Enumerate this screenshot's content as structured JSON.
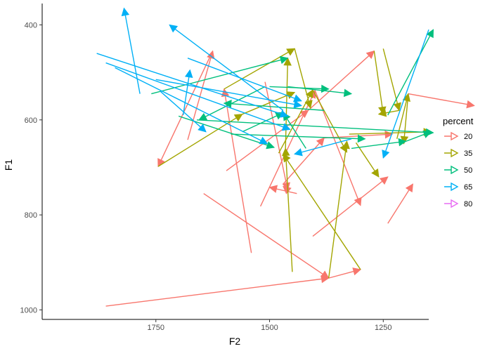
{
  "chart_data": {
    "type": "line",
    "subtype": "arrow-segments",
    "xlabel": "F2",
    "ylabel": "F1",
    "x_reversed": true,
    "y_reversed": true,
    "xlim": [
      2000,
      1150
    ],
    "ylim": [
      355,
      1020
    ],
    "x_ticks": [
      1750,
      1500,
      1250
    ],
    "y_ticks": [
      400,
      600,
      800,
      1000
    ],
    "grid": false,
    "legend": {
      "title": "percent",
      "placement": "right",
      "entries": [
        "20",
        "35",
        "50",
        "65",
        "80"
      ]
    },
    "colors": {
      "20": "#F8766D",
      "35": "#A3A500",
      "50": "#00BF7D",
      "65": "#00B0F6",
      "80": "#E76BF3"
    },
    "series": [
      {
        "name": "20",
        "segments": [
          [
            1860,
            992,
            1370,
            933
          ],
          [
            1370,
            933,
            1300,
            915
          ],
          [
            1645,
            755,
            1370,
            933
          ],
          [
            1680,
            642,
            1625,
            455
          ],
          [
            1625,
            455,
            1745,
            698
          ],
          [
            1595,
            707,
            1415,
            580
          ],
          [
            1415,
            580,
            1270,
            455
          ],
          [
            1520,
            782,
            1400,
            538
          ],
          [
            1400,
            538,
            1300,
            780
          ],
          [
            1470,
            735,
            1380,
            638
          ],
          [
            1380,
            638,
            1230,
            630
          ],
          [
            1510,
            520,
            1460,
            748
          ],
          [
            1460,
            748,
            1470,
            740
          ],
          [
            1440,
            755,
            1500,
            742
          ],
          [
            1405,
            845,
            1240,
            720
          ],
          [
            1240,
            818,
            1185,
            735
          ],
          [
            1540,
            880,
            1600,
            535
          ],
          [
            1195,
            545,
            1050,
            570
          ]
        ]
      },
      {
        "name": "35",
        "segments": [
          [
            1745,
            698,
            1560,
            588
          ],
          [
            1560,
            588,
            1445,
            542
          ],
          [
            1600,
            535,
            1445,
            450
          ],
          [
            1445,
            450,
            1410,
            575
          ],
          [
            1450,
            920,
            1465,
            660
          ],
          [
            1465,
            660,
            1460,
            470
          ],
          [
            1480,
            670,
            1405,
            537
          ],
          [
            1405,
            537,
            1330,
            668
          ],
          [
            1300,
            915,
            1470,
            672
          ],
          [
            1370,
            933,
            1330,
            645
          ],
          [
            1250,
            450,
            1215,
            580
          ],
          [
            1215,
            580,
            1260,
            588
          ],
          [
            1310,
            648,
            1260,
            720
          ],
          [
            1220,
            640,
            1195,
            545
          ],
          [
            1195,
            545,
            1205,
            650
          ],
          [
            1270,
            455,
            1250,
            588
          ],
          [
            1325,
            630,
            1145,
            625
          ]
        ]
      },
      {
        "name": "50",
        "segments": [
          [
            1760,
            545,
            1460,
            470
          ],
          [
            1460,
            530,
            1320,
            545
          ],
          [
            1380,
            580,
            1600,
            565
          ],
          [
            1700,
            592,
            1490,
            658
          ],
          [
            1560,
            625,
            1470,
            585
          ],
          [
            1510,
            530,
            1655,
            600
          ],
          [
            1500,
            530,
            1370,
            535
          ],
          [
            1660,
            600,
            1140,
            627
          ],
          [
            1585,
            630,
            1290,
            640
          ],
          [
            1320,
            660,
            1200,
            645
          ],
          [
            1200,
            645,
            1145,
            625
          ],
          [
            1240,
            590,
            1140,
            410
          ],
          [
            1420,
            660,
            1470,
            585
          ]
        ]
      },
      {
        "name": "65",
        "segments": [
          [
            1785,
            545,
            1820,
            365
          ],
          [
            1690,
            590,
            1675,
            495
          ],
          [
            1470,
            580,
            1720,
            400
          ],
          [
            1880,
            460,
            1460,
            592
          ],
          [
            1860,
            480,
            1455,
            620
          ],
          [
            1840,
            490,
            1505,
            650
          ],
          [
            1750,
            515,
            1430,
            570
          ],
          [
            1680,
            470,
            1430,
            560
          ],
          [
            1740,
            540,
            1640,
            625
          ],
          [
            1320,
            640,
            1445,
            672
          ],
          [
            1150,
            410,
            1250,
            680
          ]
        ]
      },
      {
        "name": "80",
        "segments": []
      }
    ]
  }
}
